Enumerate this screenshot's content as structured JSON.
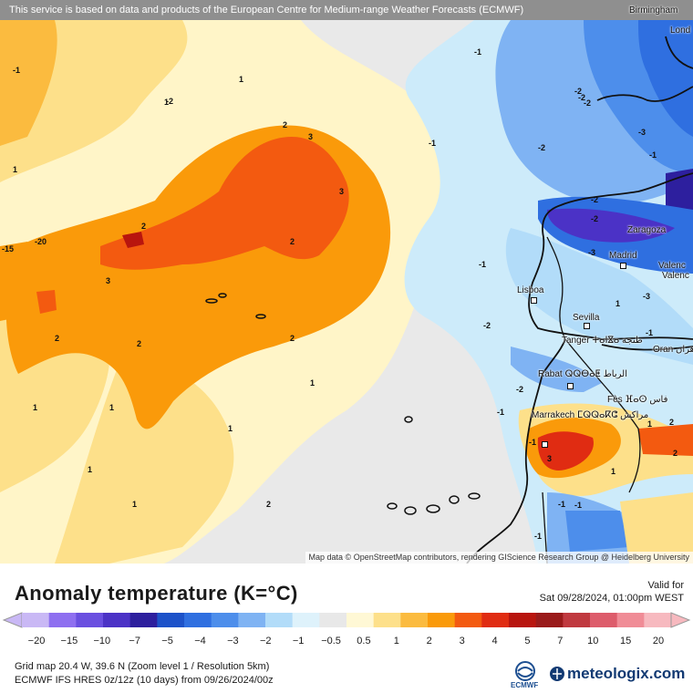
{
  "map": {
    "notice": "This service is based on data and products of the European Centre for Medium-range Weather Forecasts (ECMWF)",
    "attribution": "Map data © OpenStreetMap contributors, rendering GIScience Research Group @ Heidelberg University",
    "cities": [
      {
        "name": "Birmingham"
      },
      {
        "name": "Lond"
      },
      {
        "name": "Zaragoza"
      },
      {
        "name": "Madrid"
      },
      {
        "name": "Valenc"
      },
      {
        "name": "Valenc"
      },
      {
        "name": "Lisboa"
      },
      {
        "name": "Sevilla"
      },
      {
        "name": "Tanger ⵜⴰⵏⴵⴰ طنجة"
      },
      {
        "name": "Oran وهران"
      },
      {
        "name": "Rabat ⵕⵕⴱⴰⵟ الرباط"
      },
      {
        "name": "Fès ⴼⴰⵙ فاس"
      },
      {
        "name": "Marrakech ⵎⵕⵕⴰⴽⵛ مراكش"
      }
    ],
    "contour_labels": [
      "-1",
      "-1",
      "-1",
      "-2",
      "-2",
      "-3",
      "-2",
      "-2",
      "-1",
      "-1",
      "-1",
      "-2",
      "-2",
      "-2",
      "-3",
      "1",
      "1",
      "1",
      "1",
      "1",
      "2",
      "2",
      "2",
      "3",
      "3",
      "3",
      "-20",
      "-15",
      "2",
      "2",
      "1",
      "1",
      "1",
      "2",
      "2",
      "1",
      "-1",
      "-2",
      "-3",
      "1",
      "1",
      "2",
      "3",
      "2",
      "-1",
      "1",
      "-1",
      "-1",
      "-1",
      "-2"
    ]
  },
  "legend": {
    "title": "Anomaly temperature (K=°C)",
    "valid_label": "Valid for",
    "valid_date": "Sat 09/28/2024, 01:00pm WEST",
    "ticks": [
      "−20",
      "−15",
      "−10",
      "−7",
      "−5",
      "−4",
      "−3",
      "−2",
      "−1",
      "−0.5",
      "0.5",
      "1",
      "2",
      "3",
      "4",
      "5",
      "7",
      "10",
      "15",
      "20"
    ],
    "colors": [
      "#c9b8f5",
      "#8e6ff0",
      "#6a4fe0",
      "#4b32c6",
      "#2d1f9e",
      "#1d52c9",
      "#2f6fe0",
      "#4d8eeb",
      "#7fb3f3",
      "#b2dcf9",
      "#def2fb",
      "#e8e8e8",
      "#fff8d5",
      "#fde08a",
      "#fbbb3f",
      "#fa9a0a",
      "#f35a10",
      "#e02c12",
      "#b8150e",
      "#9a1a1a",
      "#c0393f",
      "#dd5c6b",
      "#f08c96",
      "#f7b9bf"
    ]
  },
  "footer": {
    "grid_info": "Grid map 20.4 W, 39.6 N (Zoom level 1 / Resolution 5km)",
    "model_info": "ECMWF IFS HRES 0z/12z (10 days) from 09/26/2024/00z",
    "ecmwf_label": "ECMWF",
    "brand": "meteologix.com"
  }
}
